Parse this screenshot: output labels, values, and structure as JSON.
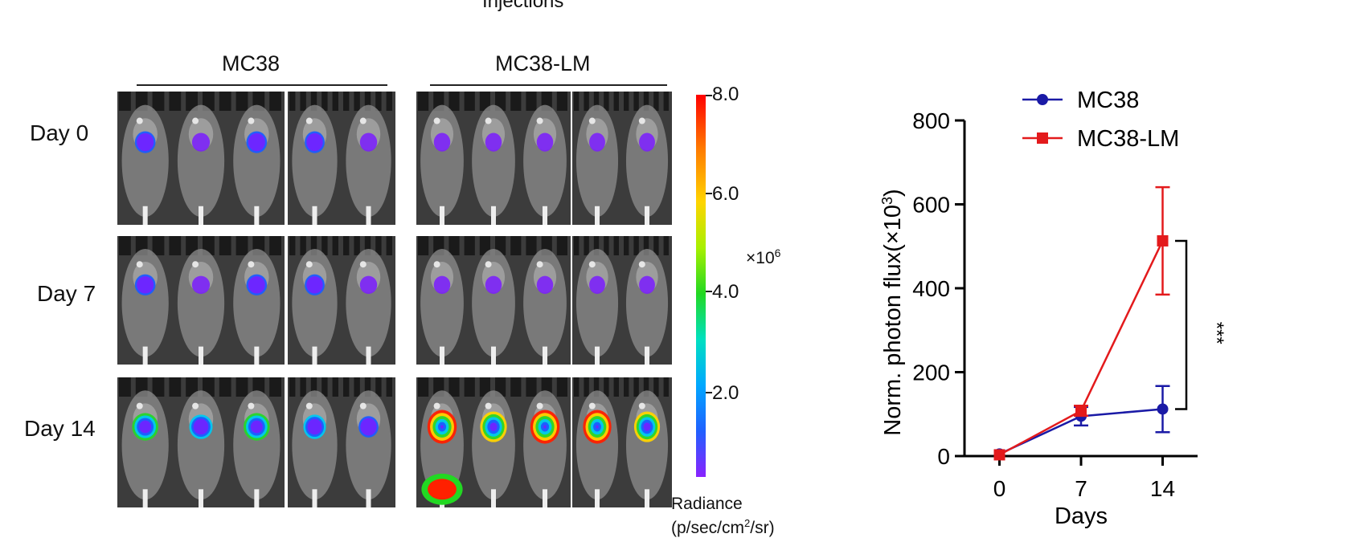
{
  "figure": {
    "top_cut_text": "Injections",
    "groups": [
      {
        "label": "MC38"
      },
      {
        "label": "MC38-LM"
      }
    ],
    "rows": [
      {
        "label": "Day  0"
      },
      {
        "label": "Day  7"
      },
      {
        "label": "Day  14"
      }
    ],
    "colorbar": {
      "ticks": [
        "8.0",
        "6.0",
        "4.0",
        "2.0"
      ],
      "multiplier_base": "×10",
      "multiplier_exp": "6",
      "title_line1": "Radiance",
      "title_line2_pre": "(p/sec/cm",
      "title_line2_sup": "2",
      "title_line2_post": "/sr)"
    }
  },
  "chart_data": {
    "type": "line",
    "x": [
      0,
      7,
      14
    ],
    "xticks": [
      "0",
      "7",
      "14"
    ],
    "xlabel": "Days",
    "ylabel_pre": "Norm. photon flux(×10",
    "ylabel_sup": "3",
    "ylabel_post": ")",
    "yticks": [
      "0",
      "200",
      "400",
      "600",
      "800"
    ],
    "ylim": [
      0,
      800
    ],
    "series": [
      {
        "name": "MC38",
        "color": "#1a1aa6",
        "marker": "circle",
        "values": [
          5,
          95,
          112
        ],
        "err": [
          3,
          22,
          55
        ]
      },
      {
        "name": "MC38-LM",
        "color": "#e31a1c",
        "marker": "square",
        "values": [
          3,
          108,
          513
        ],
        "err": [
          2,
          12,
          128
        ]
      }
    ],
    "significance": "***",
    "legend_position": "top-left"
  }
}
